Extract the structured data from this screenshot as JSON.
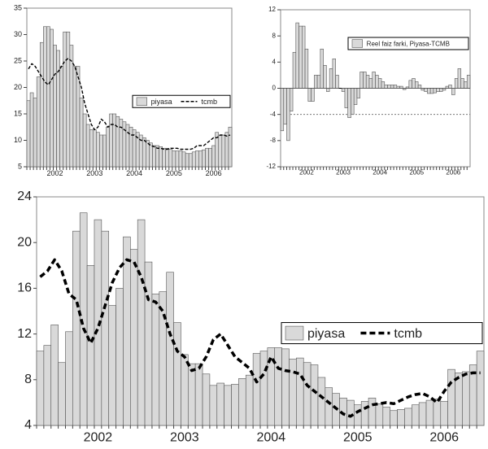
{
  "chart_data": [
    {
      "type": "bar",
      "categories": [
        null,
        null,
        null,
        null,
        null,
        null,
        null,
        null,
        "2002",
        null,
        null,
        null,
        null,
        null,
        null,
        null,
        null,
        null,
        null,
        null,
        "2003",
        null,
        null,
        null,
        null,
        null,
        null,
        null,
        null,
        null,
        null,
        null,
        "2004",
        null,
        null,
        null,
        null,
        null,
        null,
        null,
        null,
        null,
        null,
        null,
        "2005",
        null,
        null,
        null,
        null,
        null,
        null,
        null,
        null,
        null,
        null,
        null,
        "2006",
        null,
        null,
        null,
        null,
        null
      ],
      "series": [
        {
          "name": "piyasa",
          "kind": "bar",
          "color": "#d9d9d9",
          "values": [
            17.5,
            19,
            18,
            22,
            28.5,
            31.5,
            31.5,
            31,
            28,
            27,
            24,
            30.5,
            30.5,
            28,
            24,
            24,
            18,
            15,
            13,
            12,
            12,
            11.5,
            11,
            11,
            12.5,
            15,
            15,
            14.5,
            14,
            13.5,
            13,
            12.5,
            12,
            11.5,
            11,
            10.5,
            10,
            9.5,
            9,
            9,
            8.8,
            8.5,
            8.5,
            8.3,
            8,
            8,
            8,
            7.8,
            7.5,
            7.5,
            7.8,
            8,
            8,
            8.2,
            8.5,
            8.5,
            9,
            11.5,
            11,
            11,
            11.5,
            12.5
          ]
        },
        {
          "name": "tcmb",
          "kind": "line",
          "color": "#000000",
          "values": [
            23.5,
            24.5,
            24,
            23,
            22,
            21,
            20.5,
            21.5,
            22.5,
            23,
            24,
            25,
            25.5,
            25,
            24,
            22,
            20,
            17,
            15,
            13,
            12,
            12.5,
            14,
            13.5,
            12.5,
            13,
            13,
            12.5,
            12.5,
            12,
            11.5,
            11,
            11,
            10.5,
            10,
            10,
            9.5,
            9,
            8.8,
            8.5,
            8.5,
            8.3,
            8.3,
            8.5,
            8.5,
            8.5,
            8.3,
            8.3,
            8.3,
            8.3,
            8.5,
            9,
            9,
            9,
            9.5,
            10,
            10.5,
            10.5,
            11,
            11,
            10.8,
            11
          ]
        }
      ],
      "ylim": [
        5,
        35
      ],
      "yticks": [
        5,
        10,
        15,
        20,
        25,
        30,
        35
      ],
      "legend": "center right"
    },
    {
      "type": "bar",
      "categories": [
        null,
        null,
        null,
        null,
        null,
        null,
        null,
        null,
        "2002",
        null,
        null,
        null,
        null,
        null,
        null,
        null,
        null,
        null,
        null,
        null,
        "2003",
        null,
        null,
        null,
        null,
        null,
        null,
        null,
        null,
        null,
        null,
        null,
        "2004",
        null,
        null,
        null,
        null,
        null,
        null,
        null,
        null,
        null,
        null,
        null,
        "2005",
        null,
        null,
        null,
        null,
        null,
        null,
        null,
        null,
        null,
        null,
        null,
        "2006",
        null,
        null,
        null,
        null,
        null
      ],
      "series": [
        {
          "name": "Reel faiz farki, Piyasa-TCMB",
          "kind": "bar",
          "color": "#d9d9d9",
          "values": [
            -6.5,
            -5.5,
            -8,
            -3.5,
            5.5,
            10,
            9.5,
            9.5,
            6,
            -2,
            -2,
            2,
            2,
            6,
            3.5,
            -0.5,
            3,
            4.5,
            2,
            0,
            -0.5,
            -3,
            -4.5,
            -4,
            -2.5,
            -1.5,
            2.5,
            2.5,
            2,
            1.5,
            2.5,
            2,
            1.5,
            1,
            0.5,
            0.5,
            0.5,
            0.5,
            0.3,
            0.3,
            -0.2,
            0.2,
            1.2,
            1.5,
            1,
            0.5,
            -0.3,
            -0.5,
            -0.8,
            -0.8,
            -0.7,
            -0.5,
            -0.5,
            -0.3,
            0.3,
            0.5,
            -1,
            1.5,
            3,
            1.5,
            1,
            2
          ]
        }
      ],
      "reference_line": -4,
      "ylim": [
        -12,
        12
      ],
      "yticks": [
        -12,
        -8,
        -4,
        0,
        4,
        8,
        12
      ],
      "legend": "top right"
    },
    {
      "type": "bar",
      "categories": [
        null,
        null,
        null,
        null,
        null,
        null,
        null,
        null,
        "2002",
        null,
        null,
        null,
        null,
        null,
        null,
        null,
        null,
        null,
        null,
        null,
        "2003",
        null,
        null,
        null,
        null,
        null,
        null,
        null,
        null,
        null,
        null,
        null,
        "2004",
        null,
        null,
        null,
        null,
        null,
        null,
        null,
        null,
        null,
        null,
        null,
        "2005",
        null,
        null,
        null,
        null,
        null,
        null,
        null,
        null,
        null,
        null,
        null,
        "2006",
        null,
        null,
        null,
        null,
        null
      ],
      "series": [
        {
          "name": "piyasa",
          "kind": "bar",
          "color": "#d9d9d9",
          "values": [
            10.5,
            11,
            12.8,
            9.5,
            12.2,
            21,
            22.6,
            18,
            22,
            21,
            14.5,
            16,
            20.5,
            19.4,
            22,
            18.3,
            15.5,
            15.7,
            17.4,
            13,
            10.2,
            9.4,
            9.4,
            8.5,
            7.5,
            7.7,
            7.5,
            7.6,
            8.1,
            8.4,
            10.3,
            10.5,
            10.8,
            10.8,
            10.7,
            9.8,
            9.9,
            9.5,
            9.3,
            8.2,
            7.3,
            6.8,
            6.4,
            6.2,
            5.8,
            6.1,
            6.4,
            5.9,
            5.6,
            5.3,
            5.4,
            5.5,
            5.8,
            6.0,
            6.2,
            6.3,
            6.1,
            8.9,
            8.6,
            8.7,
            9.3,
            10.5
          ]
        },
        {
          "name": "tcmb",
          "kind": "line",
          "color": "#000000",
          "values": [
            17,
            17.5,
            18.5,
            17.5,
            15.5,
            15,
            12.5,
            11.2,
            12.5,
            14.5,
            16.5,
            17.8,
            18.5,
            18.3,
            17,
            15,
            14.8,
            14,
            12,
            10.5,
            10,
            8.8,
            9,
            10,
            11.5,
            12,
            11,
            10,
            9.5,
            9,
            7.8,
            8.5,
            10,
            9,
            8.8,
            8.7,
            8.5,
            7.5,
            7,
            6.5,
            6,
            5.5,
            5,
            4.8,
            5.2,
            5.5,
            5.8,
            5.9,
            6,
            5.9,
            6.2,
            6.5,
            6.7,
            6.8,
            6.5,
            6,
            7,
            7.8,
            8.2,
            8.5,
            8.6,
            8.6
          ]
        }
      ],
      "ylim": [
        4,
        24
      ],
      "yticks": [
        4,
        8,
        12,
        16,
        20,
        24
      ],
      "legend": "center right"
    }
  ]
}
